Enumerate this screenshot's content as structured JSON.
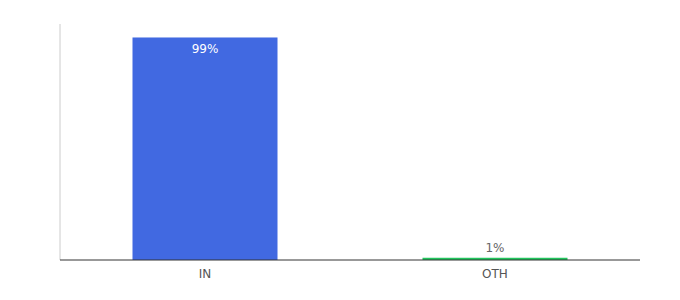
{
  "chart_data": {
    "type": "bar",
    "categories": [
      "IN",
      "OTH"
    ],
    "values": [
      99,
      1
    ],
    "value_labels": [
      "99%",
      "1%"
    ],
    "colors": [
      "#4169E1",
      "#22C55E"
    ],
    "ylim": [
      0,
      105
    ],
    "data_labels": true,
    "tick_labels": "x",
    "grid": false
  }
}
